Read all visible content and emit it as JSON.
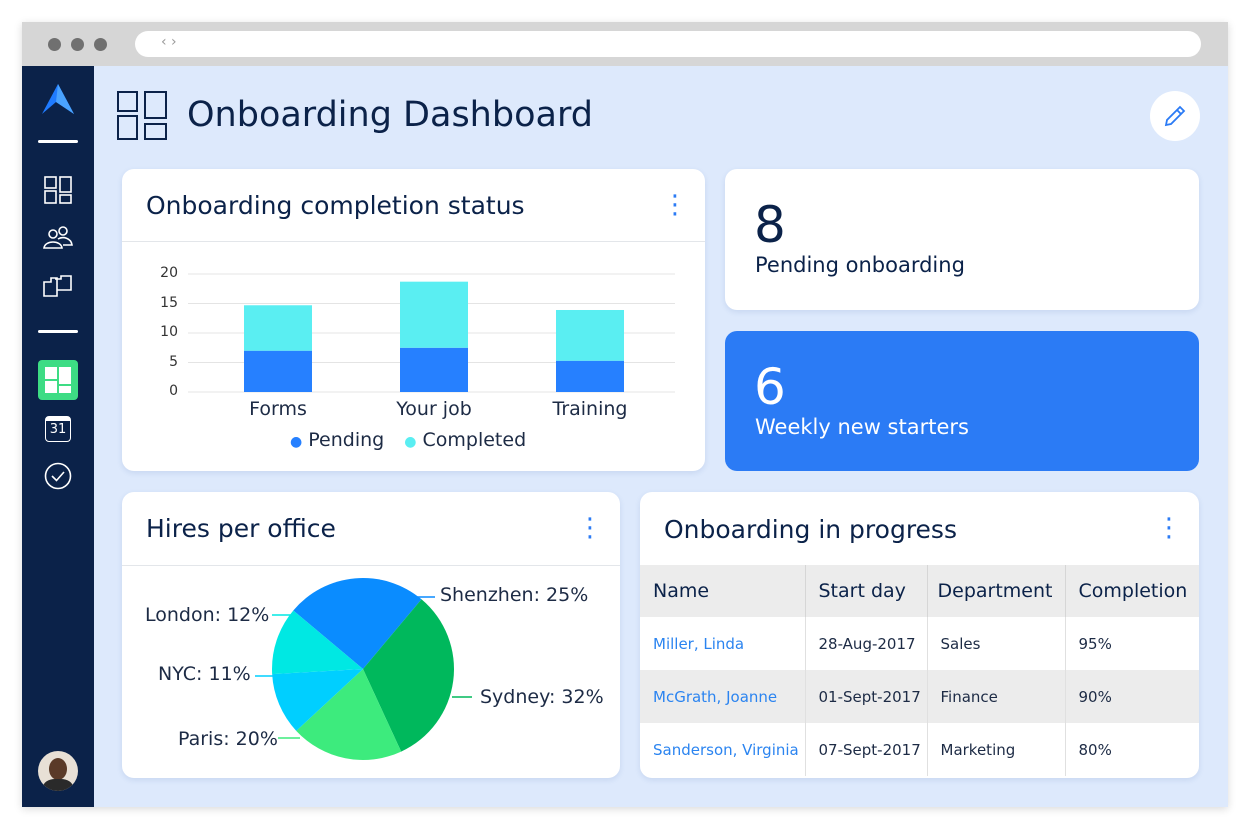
{
  "browser": {
    "nav_glyph": "‹ ›"
  },
  "sidebar": {
    "items": [
      "dashboard",
      "people",
      "folders",
      "reports",
      "calendar",
      "tasks"
    ],
    "calendar_day": "31"
  },
  "header": {
    "title": "Onboarding Dashboard"
  },
  "colors": {
    "navy": "#0b2249",
    "accent": "#2b7bf5",
    "pending": "#2680ff",
    "completed": "#5aeef2",
    "active_nav": "#3ddc84"
  },
  "completion_card": {
    "title": "Onboarding completion status"
  },
  "chart_data": {
    "type": "bar",
    "stacked": true,
    "title": "Onboarding completion status",
    "categories": [
      "Forms",
      "Your job",
      "Training"
    ],
    "series": [
      {
        "name": "Pending",
        "color": "#2680ff",
        "values": [
          7,
          7.5,
          5.3
        ]
      },
      {
        "name": "Completed",
        "color": "#5aeef2",
        "values": [
          7.7,
          11.2,
          8.6
        ]
      }
    ],
    "yticks": [
      "0",
      "5",
      "10",
      "15",
      "20"
    ],
    "ylim": [
      0,
      20
    ],
    "grid": true,
    "legend": "bottom"
  },
  "stats": [
    {
      "value": "8",
      "label": "Pending onboarding"
    },
    {
      "value": "6",
      "label": "Weekly new starters"
    }
  ],
  "hires": {
    "title": "Hires per office",
    "slices": [
      {
        "label": "Shenzhen: 25%",
        "value": 25,
        "color": "#0a8cff"
      },
      {
        "label": "Sydney: 32%",
        "value": 32,
        "color": "#00b85c"
      },
      {
        "label": "Paris: 20%",
        "value": 20,
        "color": "#3deb7d"
      },
      {
        "label": "NYC: 11%",
        "value": 11,
        "color": "#00cfff"
      },
      {
        "label": "London: 12%",
        "value": 12,
        "color": "#00e8e3"
      }
    ]
  },
  "progress": {
    "title": "Onboarding in progress",
    "columns": [
      "Name",
      "Start day",
      "Department",
      "Completion"
    ],
    "rows": [
      [
        "Miller, Linda",
        "28-Aug-2017",
        "Sales",
        "95%"
      ],
      [
        "McGrath, Joanne",
        "01-Sept-2017",
        "Finance",
        "90%"
      ],
      [
        "Sanderson, Virginia",
        "07-Sept-2017",
        "Marketing",
        "80%"
      ]
    ]
  }
}
